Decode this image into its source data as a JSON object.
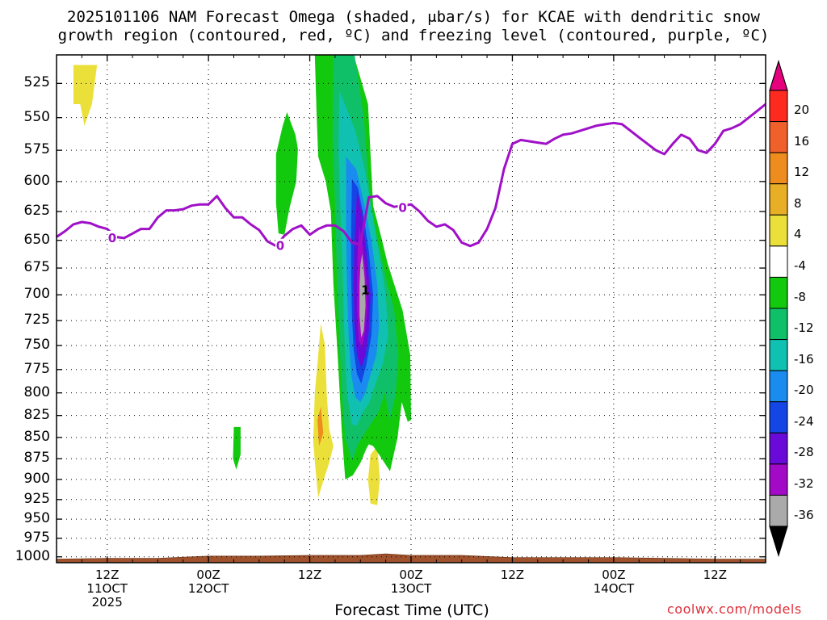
{
  "title": {
    "line1": "2025101106 NAM Forecast Omega (shaded, μbar/s) for KCAE with dendritic snow",
    "line2": "growth region (contoured, red, ºC) and freezing level (contoured, purple, ºC)"
  },
  "credit": "coolwx.com/models",
  "chart_data": {
    "type": "time-height cross section",
    "xlabel": "Forecast Time (UTC)",
    "ylabel": "",
    "x_unit": "hours from 2025-10-11 06Z",
    "xlim": [
      0,
      84
    ],
    "pressure_levels": [
      525,
      550,
      575,
      600,
      625,
      650,
      675,
      700,
      725,
      750,
      775,
      800,
      825,
      850,
      875,
      900,
      925,
      950,
      975,
      1000
    ],
    "ylim_hPa": [
      505,
      1008
    ],
    "x_ticks": [
      {
        "x": 6,
        "label": [
          "12Z",
          "11OCT",
          "2025"
        ]
      },
      {
        "x": 18,
        "label": [
          "00Z",
          "12OCT"
        ]
      },
      {
        "x": 30,
        "label": [
          "12Z"
        ]
      },
      {
        "x": 42,
        "label": [
          "00Z",
          "13OCT"
        ]
      },
      {
        "x": 54,
        "label": [
          "12Z"
        ]
      },
      {
        "x": 66,
        "label": [
          "00Z",
          "14OCT"
        ]
      },
      {
        "x": 78,
        "label": [
          "12Z"
        ]
      }
    ],
    "grid": true,
    "colorbar": {
      "labels": [
        "20",
        "16",
        "12",
        "8",
        "4",
        "-4",
        "-8",
        "-12",
        "-16",
        "-20",
        "-24",
        "-28",
        "-32",
        "-36"
      ],
      "colors": [
        "#e6007e",
        "#ff2a1f",
        "#f0602a",
        "#ee8c1e",
        "#e8ae26",
        "#ebe03a",
        "#ffffff",
        "#13c90e",
        "#10c068",
        "#10c0b0",
        "#1a8cf0",
        "#1446e6",
        "#6a0ad8",
        "#a20ac8",
        "#aaaaaa",
        "#000000"
      ]
    },
    "freezing_level": {
      "label": "0",
      "color": "#a010c8",
      "x": [
        0,
        1,
        2,
        3,
        4,
        5,
        6,
        7,
        8,
        9,
        10,
        11,
        12,
        13,
        14,
        15,
        16,
        17,
        18,
        19,
        20,
        21,
        22,
        23,
        24,
        25,
        26,
        27,
        28,
        29,
        30,
        31,
        32,
        33,
        34,
        35,
        36,
        37,
        38,
        39,
        40,
        41,
        42,
        43,
        44,
        45,
        46,
        47,
        48,
        49,
        50,
        51,
        52,
        53,
        54,
        55,
        56,
        57,
        58,
        59,
        60,
        61,
        62,
        63,
        64,
        65,
        66,
        67,
        68,
        69,
        70,
        71,
        72,
        73,
        74,
        75,
        76,
        77,
        78,
        79,
        80,
        81,
        82,
        83,
        84
      ],
      "y": [
        647,
        642,
        636,
        634,
        635,
        638,
        640,
        647,
        648,
        644,
        640,
        640,
        630,
        624,
        624,
        623,
        620,
        619,
        619,
        612,
        622,
        630,
        630,
        636,
        641,
        651,
        655,
        646,
        640,
        637,
        645,
        640,
        637,
        637,
        642,
        652,
        654,
        613,
        612,
        618,
        621,
        620,
        619,
        625,
        633,
        638,
        636,
        641,
        652,
        655,
        652,
        640,
        622,
        590,
        570,
        567,
        568,
        569,
        570,
        566,
        563,
        562,
        560,
        558,
        556,
        555,
        554,
        555,
        560,
        565,
        570,
        575,
        578,
        570,
        563,
        566,
        575,
        577,
        570,
        560,
        558,
        555,
        550,
        545,
        540
      ]
    },
    "omega_regions": [
      {
        "value_range": "4 to 8",
        "color": "#ebe03a",
        "pressure_range": [
          510,
          555
        ],
        "x_range": [
          2,
          5
        ]
      },
      {
        "value_range": "-8 to -4",
        "color": "#13c90e",
        "pressure_range": [
          540,
          650
        ],
        "x_range": [
          26,
          29
        ]
      },
      {
        "value_range": "-8 to -4",
        "color": "#13c90e",
        "pressure_range": [
          840,
          895
        ],
        "x_range": [
          21,
          22
        ]
      },
      {
        "value_range": "4 to 8",
        "color": "#ebe03a",
        "pressure_range": [
          730,
          925
        ],
        "x_range": [
          31,
          33
        ]
      },
      {
        "value_range": "4 to 8",
        "color": "#ebe03a",
        "pressure_range": [
          870,
          930
        ],
        "x_range": [
          37,
          38
        ]
      },
      {
        "value_range": "-36 to -4",
        "color": "#aaaaaa",
        "pressure_range": [
          505,
          900
        ],
        "x_range": [
          30,
          43
        ],
        "minimum": "-36",
        "minimum_location": {
          "x": 36.5,
          "p": 695
        }
      }
    ],
    "surface_pressure": {
      "color": "#a0522d",
      "x": [
        0,
        6,
        12,
        18,
        24,
        30,
        36,
        39,
        42,
        48,
        54,
        60,
        66,
        72,
        78,
        84
      ],
      "p": [
        1003,
        1002,
        1002,
        999,
        999,
        998,
        998,
        996,
        998,
        998,
        1001,
        1001,
        1001,
        1002,
        1003,
        1003
      ]
    }
  }
}
